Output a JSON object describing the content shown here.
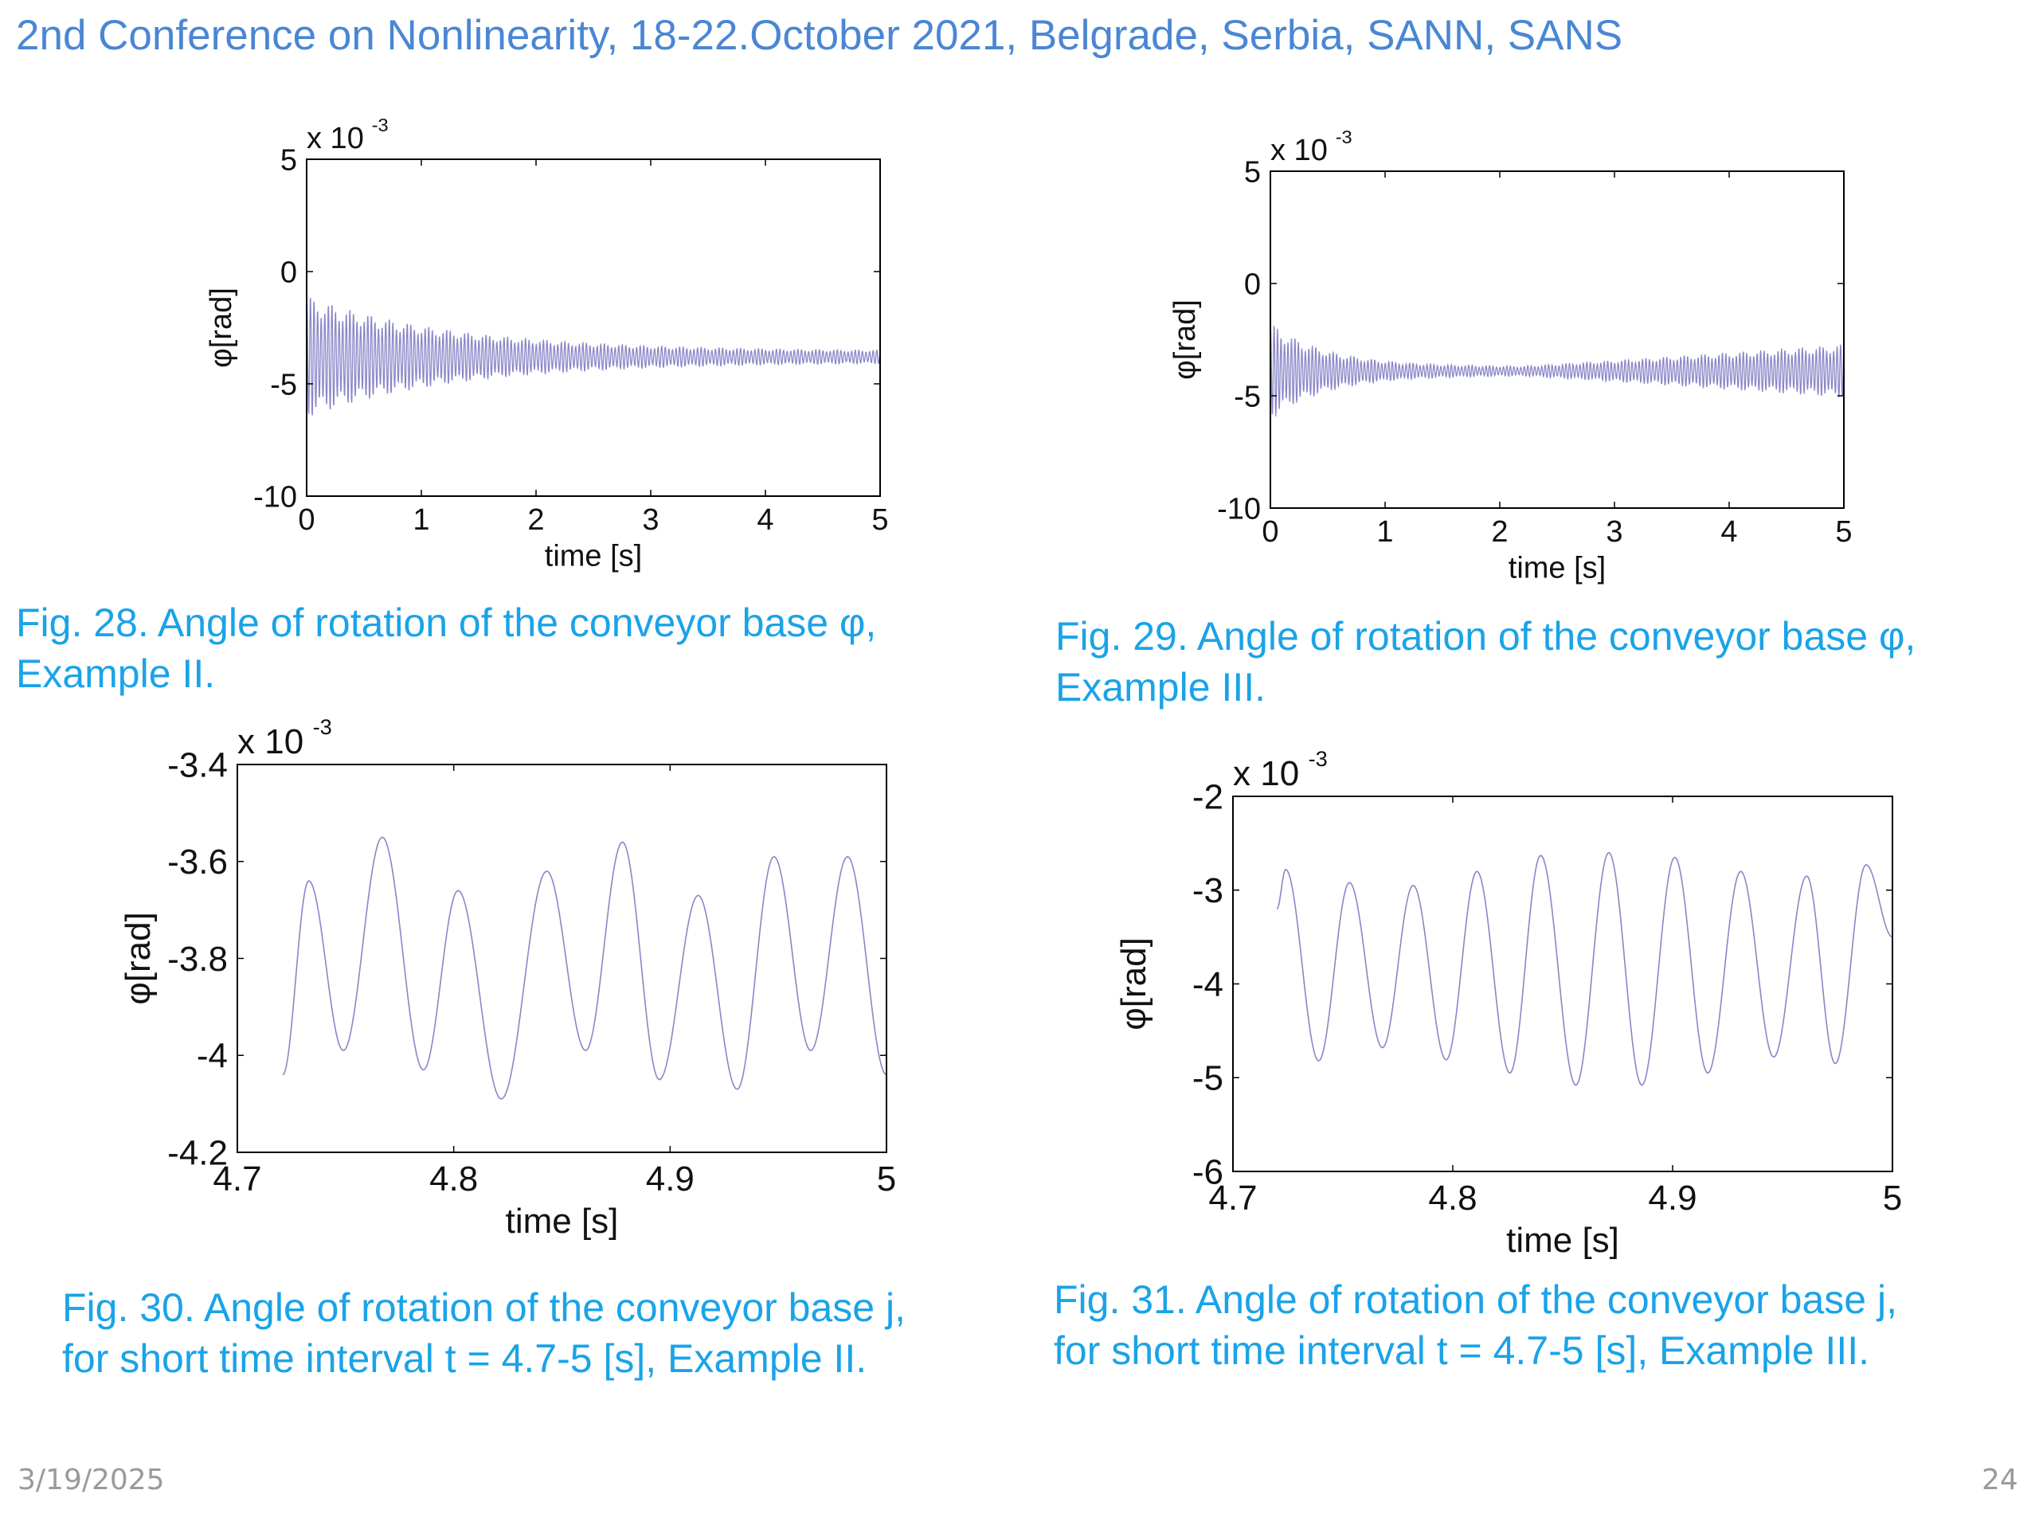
{
  "slide": {
    "title": "2nd Conference on Nonlinearity, 18-22.October 2021, Belgrade, Serbia, SANN, SANS",
    "date": "3/19/2025",
    "page_number": "24"
  },
  "colors": {
    "title": "#4a86d4",
    "caption": "#1aa3e8",
    "line": "#8a86c8",
    "axis": "#000000"
  },
  "captions": [
    {
      "line1": "Fig. 28. Angle of rotation of the conveyor base φ,",
      "line2": "Example II."
    },
    {
      "line1": "Fig. 29. Angle of rotation of the conveyor base φ,",
      "line2": "Example III."
    },
    {
      "line1": "Fig. 30. Angle of rotation of the conveyor base j,",
      "line2": "for short time interval t = 4.7-5 [s], Example II."
    },
    {
      "line1": "Fig. 31. Angle of rotation of the conveyor base j,",
      "line2": "for short time interval t = 4.7-5 [s], Example III."
    }
  ],
  "chart_data": [
    {
      "type": "line",
      "xlabel": "time [s]",
      "ylabel": "φ[rad]",
      "multiplier": {
        "base": "x 10",
        "exponent": "-3"
      },
      "xlim": [
        0,
        5
      ],
      "ylim": [
        -10,
        5
      ],
      "xticks": [
        0,
        1,
        2,
        3,
        4,
        5
      ],
      "yticks": [
        -10,
        -5,
        0,
        5
      ],
      "xtick_labels": [
        "0",
        "1",
        "2",
        "3",
        "4",
        "5"
      ],
      "ytick_labels": [
        "-10",
        "-5",
        "0",
        "5"
      ],
      "signal": {
        "mean": -3.8,
        "initial_amplitude": 2.8,
        "final_amplitude": 0.25,
        "decay_time": 1.3,
        "frequency_hz": 32,
        "t_start": 0,
        "t_end": 5
      }
    },
    {
      "type": "line",
      "xlabel": "time [s]",
      "ylabel": "φ[rad]",
      "multiplier": {
        "base": "x 10",
        "exponent": "-3"
      },
      "xlim": [
        0,
        5
      ],
      "ylim": [
        -10,
        5
      ],
      "xticks": [
        0,
        1,
        2,
        3,
        4,
        5
      ],
      "yticks": [
        -10,
        -5,
        0,
        5
      ],
      "xtick_labels": [
        "0",
        "1",
        "2",
        "3",
        "4",
        "5"
      ],
      "ytick_labels": [
        "-10",
        "-5",
        "0",
        "5"
      ],
      "signal": {
        "mean": -3.9,
        "initial_amplitude": 2.2,
        "min_amplitude": 0.2,
        "final_amplitude": 1.2,
        "decay_time": 0.5,
        "growth_start": 2.2,
        "frequency_hz": 33,
        "t_start": 0,
        "t_end": 5
      }
    },
    {
      "type": "line",
      "xlabel": "time [s]",
      "ylabel": "φ[rad]",
      "multiplier": {
        "base": "x 10",
        "exponent": "-3"
      },
      "xlim": [
        4.7,
        5
      ],
      "ylim": [
        -4.2,
        -3.4
      ],
      "xticks": [
        4.7,
        4.8,
        4.9,
        5
      ],
      "yticks": [
        -4.2,
        -4,
        -3.8,
        -3.6,
        -3.4
      ],
      "xtick_labels": [
        "4.7",
        "4.8",
        "4.9",
        "5"
      ],
      "ytick_labels": [
        "-4.2",
        "-4",
        "-3.8",
        "-3.6",
        "-3.4"
      ],
      "peaks": [
        {
          "t": 4.733,
          "v": -3.64
        },
        {
          "t": 4.767,
          "v": -3.55
        },
        {
          "t": 4.802,
          "v": -3.66
        },
        {
          "t": 4.843,
          "v": -3.62
        },
        {
          "t": 4.878,
          "v": -3.56
        },
        {
          "t": 4.913,
          "v": -3.67
        },
        {
          "t": 4.948,
          "v": -3.59
        },
        {
          "t": 4.982,
          "v": -3.59
        }
      ],
      "troughs": [
        {
          "t": 4.721,
          "v": -4.04
        },
        {
          "t": 4.749,
          "v": -3.99
        },
        {
          "t": 4.786,
          "v": -4.03
        },
        {
          "t": 4.822,
          "v": -4.09
        },
        {
          "t": 4.861,
          "v": -3.99
        },
        {
          "t": 4.895,
          "v": -4.05
        },
        {
          "t": 4.931,
          "v": -4.07
        },
        {
          "t": 4.965,
          "v": -3.99
        },
        {
          "t": 5.0,
          "v": -4.04
        }
      ]
    },
    {
      "type": "line",
      "xlabel": "time [s]",
      "ylabel": "φ[rad]",
      "multiplier": {
        "base": "x 10",
        "exponent": "-3"
      },
      "xlim": [
        4.7,
        5
      ],
      "ylim": [
        -6,
        -2
      ],
      "xticks": [
        4.7,
        4.8,
        4.9,
        5
      ],
      "yticks": [
        -6,
        -5,
        -4,
        -3,
        -2
      ],
      "xtick_labels": [
        "4.7",
        "4.8",
        "4.9",
        "5"
      ],
      "ytick_labels": [
        "-6",
        "-5",
        "-4",
        "-3",
        "-2"
      ],
      "peaks": [
        {
          "t": 4.724,
          "v": -2.78
        },
        {
          "t": 4.753,
          "v": -2.92
        },
        {
          "t": 4.782,
          "v": -2.95
        },
        {
          "t": 4.811,
          "v": -2.8
        },
        {
          "t": 4.84,
          "v": -2.63
        },
        {
          "t": 4.871,
          "v": -2.6
        },
        {
          "t": 4.901,
          "v": -2.65
        },
        {
          "t": 4.931,
          "v": -2.8
        },
        {
          "t": 4.961,
          "v": -2.85
        },
        {
          "t": 4.988,
          "v": -2.73
        }
      ],
      "troughs": [
        {
          "t": 4.72,
          "v": -3.2
        },
        {
          "t": 4.739,
          "v": -4.82
        },
        {
          "t": 4.768,
          "v": -4.68
        },
        {
          "t": 4.797,
          "v": -4.81
        },
        {
          "t": 4.826,
          "v": -4.95
        },
        {
          "t": 4.856,
          "v": -5.08
        },
        {
          "t": 4.886,
          "v": -5.08
        },
        {
          "t": 4.916,
          "v": -4.95
        },
        {
          "t": 4.946,
          "v": -4.78
        },
        {
          "t": 4.974,
          "v": -4.85
        },
        {
          "t": 5.0,
          "v": -3.5
        }
      ]
    }
  ]
}
